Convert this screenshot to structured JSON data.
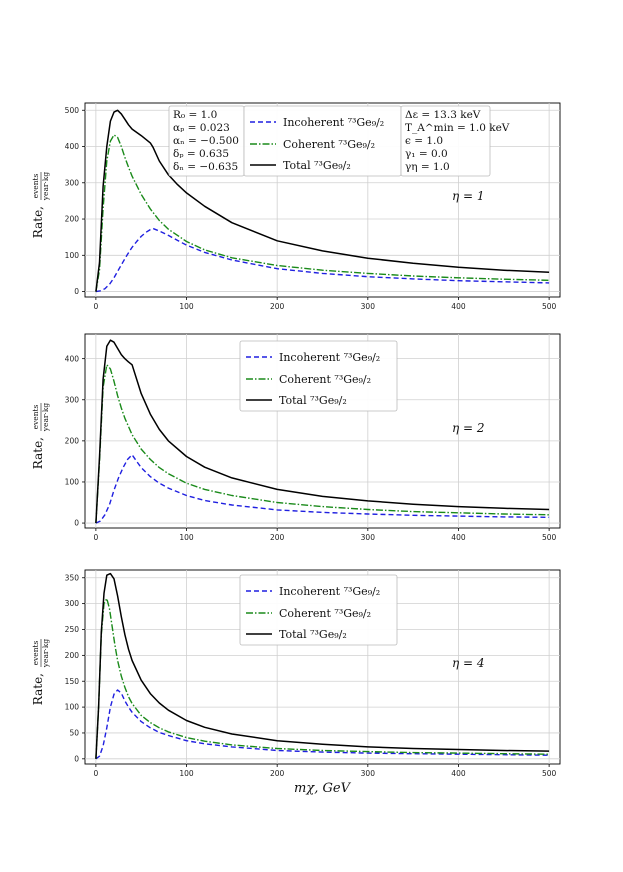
{
  "chart_data": [
    {
      "type": "line",
      "ylabel": "Rate, events / year·kg",
      "annotation": "η = 1",
      "yticks": [
        0,
        100,
        200,
        300,
        400,
        500
      ],
      "ylim": [
        -15,
        520
      ],
      "xlim": [
        -12,
        512
      ],
      "xticks": [
        0,
        100,
        200,
        300,
        400,
        500
      ],
      "params_left": [
        "R₀ = 1.0",
        "αₚ = 0.023",
        "αₙ = −0.500",
        "δₚ = 0.635",
        "δₙ = −0.635"
      ],
      "params_right": [
        "Δε = 13.3 keV",
        "T_A^min = 1.0 keV",
        "ϵ = 1.0",
        "γ₁ = 0.0",
        "γη = 1.0"
      ],
      "series": [
        {
          "name": "Incoherent ⁷³Ge₉/₂",
          "color": "#1f1fe0",
          "style": "dashed",
          "x": [
            0,
            5,
            10,
            15,
            20,
            25,
            30,
            35,
            40,
            45,
            50,
            55,
            60,
            63,
            70,
            80,
            90,
            100,
            120,
            150,
            200,
            250,
            300,
            350,
            400,
            450,
            500
          ],
          "y": [
            0,
            2,
            8,
            20,
            38,
            60,
            82,
            103,
            122,
            138,
            152,
            163,
            171,
            174,
            167,
            155,
            141,
            128,
            108,
            87,
            63,
            50,
            41,
            35,
            30,
            27,
            24
          ]
        },
        {
          "name": "Coherent ⁷³Ge₉/₂",
          "color": "#1a8a1a",
          "style": "dashdot",
          "x": [
            0,
            4,
            8,
            12,
            16,
            20,
            24,
            28,
            32,
            36,
            40,
            50,
            60,
            70,
            80,
            100,
            120,
            150,
            200,
            250,
            300,
            350,
            400,
            450,
            500
          ],
          "y": [
            0,
            60,
            230,
            360,
            415,
            432,
            425,
            400,
            370,
            343,
            318,
            268,
            228,
            196,
            172,
            138,
            115,
            93,
            72,
            59,
            50,
            43,
            38,
            34,
            31
          ]
        },
        {
          "name": "Total ⁷³Ge₉/₂",
          "color": "#000000",
          "style": "solid",
          "x": [
            0,
            4,
            8,
            12,
            16,
            20,
            24,
            28,
            32,
            36,
            40,
            50,
            60,
            63,
            70,
            80,
            90,
            100,
            120,
            150,
            200,
            250,
            300,
            350,
            400,
            450,
            500
          ],
          "y": [
            0,
            80,
            290,
            400,
            470,
            495,
            500,
            490,
            475,
            460,
            448,
            430,
            410,
            398,
            360,
            322,
            295,
            272,
            235,
            190,
            140,
            112,
            92,
            78,
            67,
            59,
            53
          ]
        }
      ]
    },
    {
      "type": "line",
      "ylabel": "Rate, events / year·kg",
      "annotation": "η = 2",
      "yticks": [
        0,
        100,
        200,
        300,
        400
      ],
      "ylim": [
        -12,
        460
      ],
      "xlim": [
        -12,
        512
      ],
      "xticks": [
        0,
        100,
        200,
        300,
        400,
        500
      ],
      "series": [
        {
          "name": "Incoherent ⁷³Ge₉/₂",
          "color": "#1f1fe0",
          "style": "dashed",
          "x": [
            0,
            5,
            10,
            15,
            20,
            25,
            30,
            35,
            40,
            45,
            50,
            60,
            70,
            80,
            100,
            120,
            150,
            200,
            250,
            300,
            350,
            400,
            450,
            500
          ],
          "y": [
            0,
            5,
            20,
            45,
            80,
            110,
            135,
            155,
            166,
            150,
            135,
            113,
            97,
            85,
            67,
            55,
            44,
            32,
            26,
            22,
            19,
            17,
            15,
            14
          ]
        },
        {
          "name": "Coherent ⁷³Ge₉/₂",
          "color": "#1a8a1a",
          "style": "dashdot",
          "x": [
            0,
            4,
            8,
            12,
            16,
            20,
            24,
            28,
            32,
            36,
            40,
            50,
            60,
            70,
            80,
            100,
            120,
            150,
            200,
            250,
            300,
            350,
            400,
            450,
            500
          ],
          "y": [
            0,
            150,
            330,
            385,
            375,
            345,
            310,
            280,
            255,
            235,
            215,
            180,
            155,
            135,
            120,
            97,
            82,
            67,
            50,
            40,
            33,
            28,
            25,
            22,
            20
          ]
        },
        {
          "name": "Total ⁷³Ge₉/₂",
          "color": "#000000",
          "style": "solid",
          "x": [
            0,
            4,
            8,
            12,
            16,
            20,
            24,
            28,
            32,
            36,
            40,
            50,
            60,
            70,
            80,
            100,
            120,
            150,
            200,
            250,
            300,
            350,
            400,
            450,
            500
          ],
          "y": [
            0,
            160,
            350,
            430,
            445,
            440,
            425,
            410,
            400,
            392,
            385,
            315,
            265,
            228,
            200,
            162,
            136,
            110,
            82,
            65,
            54,
            46,
            40,
            36,
            33
          ]
        }
      ]
    },
    {
      "type": "line",
      "ylabel": "Rate, events / year·kg",
      "annotation": "η = 4",
      "yticks": [
        0,
        50,
        100,
        150,
        200,
        250,
        300,
        350
      ],
      "ylim": [
        -10,
        365
      ],
      "xlim": [
        -12,
        512
      ],
      "xticks": [
        0,
        100,
        200,
        300,
        400,
        500
      ],
      "xlabel": "mχ, GeV",
      "series": [
        {
          "name": "Incoherent ⁷³Ge₉/₂",
          "color": "#1f1fe0",
          "style": "dashed",
          "x": [
            0,
            4,
            8,
            12,
            16,
            20,
            24,
            28,
            32,
            36,
            40,
            50,
            60,
            70,
            80,
            100,
            120,
            150,
            200,
            250,
            300,
            350,
            400,
            450,
            500
          ],
          "y": [
            0,
            5,
            25,
            60,
            100,
            125,
            133,
            127,
            112,
            100,
            90,
            72,
            60,
            51,
            45,
            35,
            29,
            23,
            16,
            13,
            11,
            10,
            9,
            8,
            7
          ]
        },
        {
          "name": "Coherent ⁷³Ge₉/₂",
          "color": "#1a8a1a",
          "style": "dashdot",
          "x": [
            0,
            3,
            6,
            9,
            12,
            15,
            18,
            21,
            24,
            28,
            32,
            36,
            40,
            50,
            60,
            70,
            80,
            100,
            120,
            150,
            200,
            250,
            300,
            350,
            400,
            450,
            500
          ],
          "y": [
            0,
            100,
            240,
            300,
            310,
            290,
            255,
            220,
            190,
            160,
            138,
            120,
            107,
            84,
            70,
            60,
            52,
            41,
            34,
            27,
            20,
            16,
            14,
            12,
            11,
            10,
            9
          ]
        },
        {
          "name": "Total ⁷³Ge₉/₂",
          "color": "#000000",
          "style": "solid",
          "x": [
            0,
            3,
            6,
            9,
            12,
            16,
            20,
            24,
            28,
            32,
            36,
            40,
            50,
            60,
            70,
            80,
            100,
            120,
            150,
            200,
            250,
            300,
            350,
            400,
            450,
            500
          ],
          "y": [
            0,
            100,
            245,
            320,
            355,
            358,
            348,
            315,
            275,
            240,
            212,
            190,
            152,
            126,
            108,
            94,
            74,
            61,
            48,
            35,
            28,
            23,
            20,
            18,
            16,
            15
          ]
        }
      ]
    }
  ]
}
